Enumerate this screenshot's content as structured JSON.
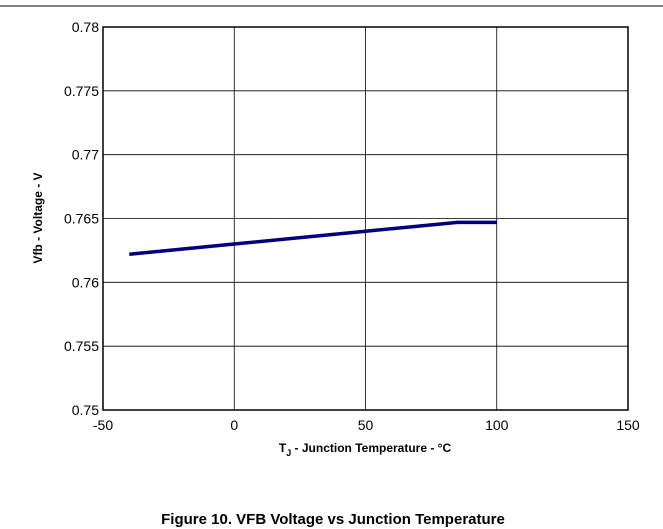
{
  "chart_data": {
    "type": "line",
    "x_label": {
      "main": "T",
      "sub": "J",
      "rest": " - Junction Temperature - °C"
    },
    "y_label": "Vfb - Voltage - V",
    "caption": "Figure 10. VFB Voltage vs Junction Temperature",
    "x": [
      -40,
      0,
      50,
      85,
      100
    ],
    "series": [
      {
        "name": "Vfb",
        "color": "#000080",
        "values": [
          0.7622,
          0.763,
          0.764,
          0.7647,
          0.7647
        ]
      }
    ],
    "xlim": [
      -50,
      150
    ],
    "xticks": [
      -50,
      0,
      50,
      100,
      150
    ],
    "ylim": [
      0.75,
      0.78
    ],
    "yticks": [
      0.75,
      0.755,
      0.76,
      0.765,
      0.77,
      0.775,
      0.78
    ],
    "grid": true
  }
}
